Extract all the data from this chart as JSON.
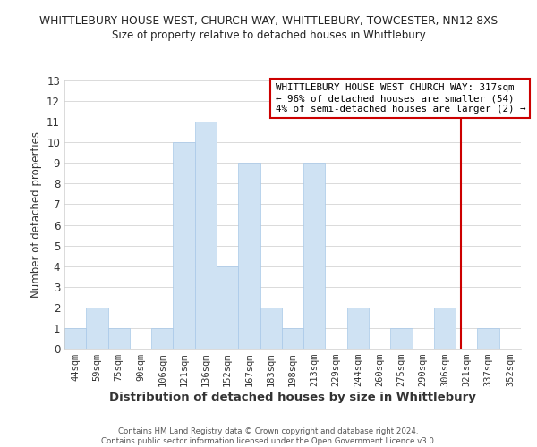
{
  "title_main": "WHITTLEBURY HOUSE WEST, CHURCH WAY, WHITTLEBURY, TOWCESTER, NN12 8XS",
  "title_sub": "Size of property relative to detached houses in Whittlebury",
  "xlabel": "Distribution of detached houses by size in Whittlebury",
  "ylabel": "Number of detached properties",
  "categories": [
    "44sqm",
    "59sqm",
    "75sqm",
    "90sqm",
    "106sqm",
    "121sqm",
    "136sqm",
    "152sqm",
    "167sqm",
    "183sqm",
    "198sqm",
    "213sqm",
    "229sqm",
    "244sqm",
    "260sqm",
    "275sqm",
    "290sqm",
    "306sqm",
    "321sqm",
    "337sqm",
    "352sqm"
  ],
  "values": [
    1,
    2,
    1,
    0,
    1,
    10,
    11,
    4,
    9,
    2,
    1,
    9,
    0,
    2,
    0,
    1,
    0,
    2,
    0,
    1,
    0
  ],
  "bar_color": "#cfe2f3",
  "bar_edge_color": "#a8c8e8",
  "grid_color": "#cccccc",
  "ylim": [
    0,
    13
  ],
  "yticks": [
    0,
    1,
    2,
    3,
    4,
    5,
    6,
    7,
    8,
    9,
    10,
    11,
    12,
    13
  ],
  "vline_color": "#cc0000",
  "annotation_line1": "WHITTLEBURY HOUSE WEST CHURCH WAY: 317sqm",
  "annotation_line2": "← 96% of detached houses are smaller (54)",
  "annotation_line3": "4% of semi-detached houses are larger (2) →",
  "annotation_box_color": "#ffffff",
  "annotation_box_edge": "#cc0000",
  "footer_text": "Contains HM Land Registry data © Crown copyright and database right 2024.\nContains public sector information licensed under the Open Government Licence v3.0.",
  "background_color": "#ffffff",
  "title_color": "#222222",
  "axis_label_color": "#333333"
}
